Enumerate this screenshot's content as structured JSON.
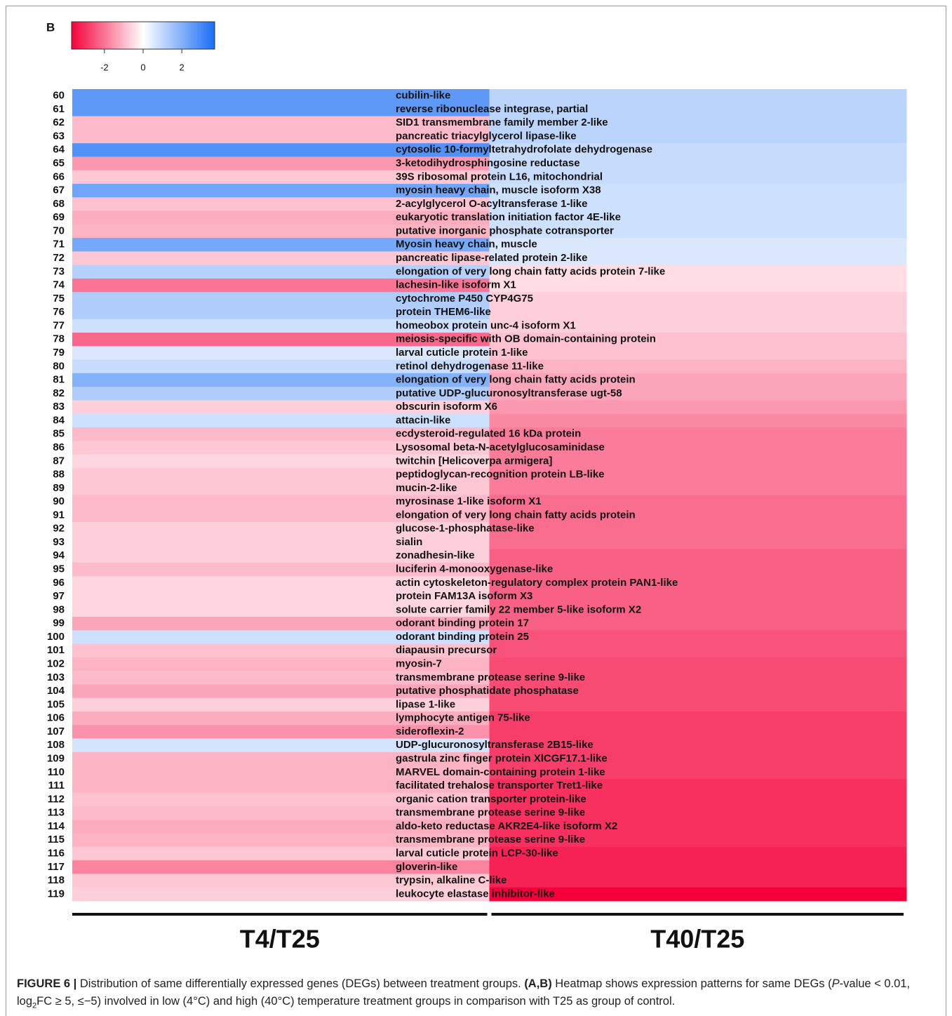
{
  "chart_data": {
    "type": "heatmap",
    "panel_label": "B",
    "rows": [
      "60",
      "61",
      "62",
      "63",
      "64",
      "65",
      "66",
      "67",
      "68",
      "69",
      "70",
      "71",
      "72",
      "73",
      "74",
      "75",
      "76",
      "77",
      "78",
      "79",
      "80",
      "81",
      "82",
      "83",
      "84",
      "85",
      "86",
      "87",
      "88",
      "89",
      "90",
      "91",
      "92",
      "93",
      "94",
      "95",
      "96",
      "97",
      "98",
      "99",
      "100",
      "101",
      "102",
      "103",
      "104",
      "105",
      "106",
      "107",
      "108",
      "109",
      "110",
      "111",
      "112",
      "113",
      "114",
      "115",
      "116",
      "117",
      "118",
      "119"
    ],
    "genes": [
      "cubilin-like",
      "reverse ribonuclease integrase, partial",
      "SID1 transmembrane family member 2-like",
      "pancreatic triacylglycerol lipase-like",
      "cytosolic 10-formyltetrahydrofolate dehydrogenase",
      "3-ketodihydrosphingosine reductase",
      "39S ribosomal protein L16, mitochondrial",
      "myosin heavy chain, muscle isoform X38",
      "2-acylglycerol O-acyltransferase 1-like",
      "eukaryotic translation initiation factor 4E-like",
      "putative inorganic phosphate cotransporter",
      "Myosin heavy chain, muscle",
      "pancreatic lipase-related protein 2-like",
      "elongation of very long chain fatty acids protein 7-like",
      "lachesin-like isoform X1",
      "cytochrome P450 CYP4G75",
      "protein THEM6-like",
      "homeobox protein unc-4 isoform X1",
      "meiosis-specific with OB domain-containing protein",
      "larval cuticle protein 1-like",
      "retinol dehydrogenase 11-like",
      "elongation of very long chain fatty acids protein",
      "putative UDP-glucuronosyltransferase ugt-58",
      "obscurin isoform X6",
      "attacin-like",
      "ecdysteroid-regulated 16 kDa protein",
      "Lysosomal beta-N-acetylglucosaminidase",
      "twitchin [Helicoverpa armigera]",
      "peptidoglycan-recognition protein LB-like",
      "mucin-2-like",
      "myrosinase 1-like isoform X1",
      "elongation of very long chain fatty acids protein",
      "glucose-1-phosphatase-like",
      "sialin",
      "zonadhesin-like",
      "luciferin 4-monooxygenase-like",
      "actin cytoskeleton-regulatory complex protein PAN1-like",
      "protein FAM13A isoform X3",
      "solute carrier family 22 member 5-like isoform X2",
      "odorant binding protein 17",
      "odorant binding protein 25",
      "diapausin precursor",
      "myosin-7",
      "transmembrane protease serine 9-like",
      "putative phosphatidate phosphatase",
      "lipase 1-like",
      "lymphocyte antigen 75-like",
      "sideroflexin-2",
      "UDP-glucuronosyltransferase 2B15-like",
      "gastrula zinc finger protein XlCGF17.1-like",
      "MARVEL domain-containing protein 1-like",
      "facilitated trehalose transporter Tret1-like",
      "organic cation transporter protein-like",
      "transmembrane protease serine 9-like",
      "aldo-keto reductase AKR2E4-like isoform X2",
      "transmembrane protease serine 9-like",
      "larval cuticle protein LCP-30-like",
      "gloverin-like",
      "trypsin, alkaline C-like",
      "leukocyte elastase inhibitor-like"
    ],
    "series": [
      {
        "name": "T4/T25",
        "values": [
          2.6,
          2.6,
          -1.0,
          -1.0,
          2.8,
          -1.5,
          -0.8,
          2.3,
          -0.9,
          -1.2,
          -1.1,
          2.2,
          -0.8,
          1.2,
          -2.0,
          1.3,
          1.3,
          0.8,
          -2.2,
          0.6,
          0.9,
          2.0,
          1.3,
          -0.7,
          0.8,
          -1.0,
          -0.8,
          -0.6,
          -0.8,
          -0.8,
          -1.0,
          -1.0,
          -0.7,
          -0.7,
          -0.7,
          -1.0,
          -0.6,
          -0.6,
          -0.6,
          -1.3,
          0.8,
          -0.9,
          -1.1,
          -1.0,
          -1.3,
          -0.7,
          -1.2,
          -1.6,
          0.7,
          -1.1,
          -1.1,
          -1.1,
          -0.9,
          -1.0,
          -1.2,
          -1.1,
          -0.8,
          -1.8,
          -0.8,
          -0.7
        ]
      },
      {
        "name": "T40/T25",
        "values": [
          1.1,
          1.1,
          1.1,
          1.1,
          0.9,
          0.9,
          0.9,
          0.8,
          0.8,
          0.8,
          0.8,
          0.6,
          0.6,
          -0.5,
          -0.5,
          -0.7,
          -0.7,
          -0.7,
          -0.9,
          -0.9,
          -1.1,
          -1.3,
          -1.3,
          -1.5,
          -1.7,
          -1.9,
          -1.9,
          -1.9,
          -1.9,
          -1.9,
          -2.1,
          -2.1,
          -2.1,
          -2.1,
          -2.3,
          -2.3,
          -2.3,
          -2.3,
          -2.3,
          -2.3,
          -2.5,
          -2.5,
          -2.6,
          -2.6,
          -2.6,
          -2.6,
          -2.8,
          -2.8,
          -2.8,
          -2.8,
          -2.8,
          -3.0,
          -3.0,
          -3.0,
          -3.0,
          -3.0,
          -3.2,
          -3.2,
          -3.2,
          -3.7
        ]
      }
    ],
    "zlim": [
      -3.7,
      3.7
    ],
    "zticks": [
      -2,
      0,
      2
    ],
    "colorscale": [
      "#f5003a",
      "#ffffff",
      "#1a6ef5"
    ]
  },
  "caption": [
    {
      "text": "FIGURE 6 |",
      "style": "bold"
    },
    {
      "text": " Distribution of same differentially expressed genes (DEGs) between treatment groups. ",
      "style": "normal"
    },
    {
      "text": "(A,B)",
      "style": "bold"
    },
    {
      "text": " Heatmap shows expression patterns for same DEGs (",
      "style": "normal"
    },
    {
      "text": "P",
      "style": "italic"
    },
    {
      "text": "-value < 0.01, log",
      "style": "normal"
    },
    {
      "text": "2",
      "style": "sub"
    },
    {
      "text": "FC ≥ 5, ≤−5) involved in low (4°C) and high (40°C) temperature treatment groups in comparison with T25 as group of control.",
      "style": "normal"
    }
  ]
}
